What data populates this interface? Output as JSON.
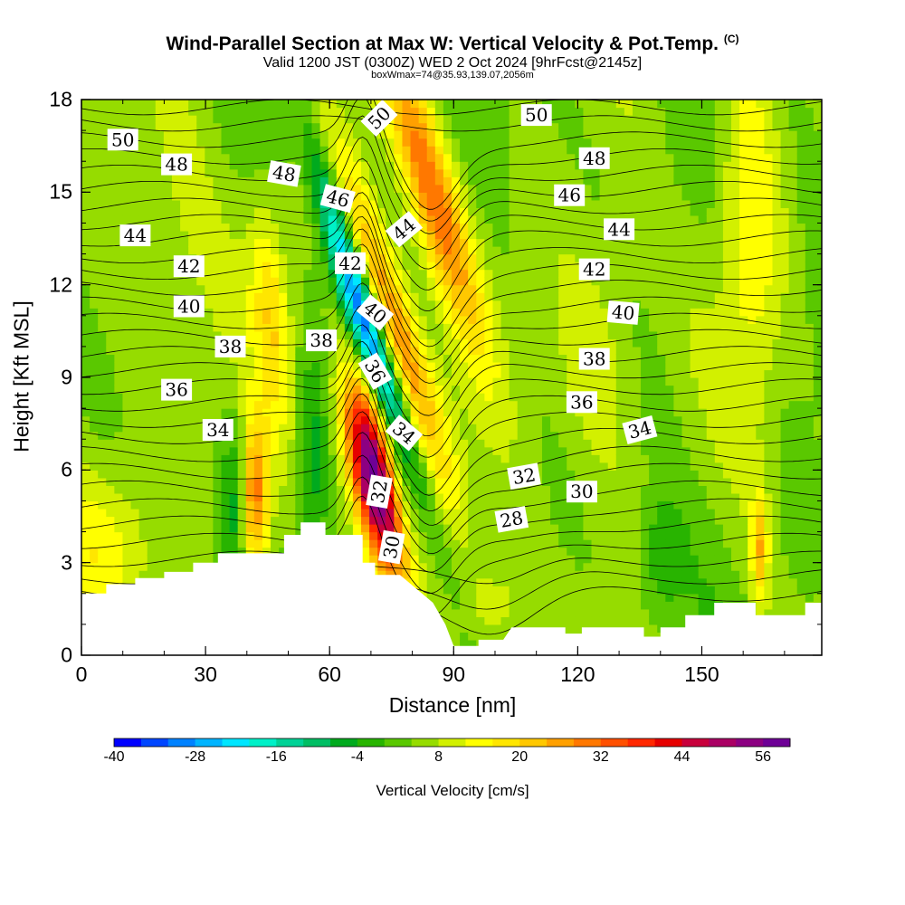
{
  "title": {
    "main": "Wind-Parallel Section at Max W: Vertical Velocity & Pot.Temp.",
    "main_mark": "(C)",
    "sub": "Valid 1200 JST (0300Z) WED 2 Oct 2024 [9hrFcst@2145z]",
    "sub2": "boxWmax=74@35.93,139.07,2056m"
  },
  "chart_data": {
    "type": "heatmap",
    "xlabel": "Distance [nm]",
    "ylabel": "Height [Kft MSL]",
    "xlim": [
      0,
      179
    ],
    "ylim": [
      0,
      18
    ],
    "xticks": [
      "0",
      "30",
      "60",
      "90",
      "120",
      "150"
    ],
    "yticks": [
      "0",
      "3",
      "6",
      "9",
      "12",
      "15",
      "18"
    ],
    "terrain": [
      [
        0,
        2.0
      ],
      [
        6,
        2.0
      ],
      [
        6,
        2.3
      ],
      [
        13,
        2.3
      ],
      [
        13,
        2.5
      ],
      [
        20,
        2.5
      ],
      [
        20,
        2.7
      ],
      [
        27,
        2.7
      ],
      [
        27,
        3.0
      ],
      [
        33,
        3.0
      ],
      [
        33,
        3.3
      ],
      [
        49,
        3.3
      ],
      [
        49,
        3.9
      ],
      [
        53,
        3.9
      ],
      [
        53,
        4.3
      ],
      [
        59,
        4.3
      ],
      [
        59,
        3.9
      ],
      [
        68,
        3.9
      ],
      [
        68,
        3.0
      ],
      [
        71,
        3.0
      ],
      [
        71,
        2.6
      ],
      [
        77,
        2.6
      ],
      [
        85,
        1.7
      ],
      [
        88,
        1.0
      ],
      [
        90,
        0.3
      ],
      [
        96,
        0.3
      ],
      [
        96,
        0.5
      ],
      [
        102,
        0.5
      ],
      [
        104,
        0.9
      ],
      [
        117,
        0.9
      ],
      [
        117,
        0.7
      ],
      [
        121,
        0.7
      ],
      [
        121,
        0.9
      ],
      [
        136,
        0.9
      ],
      [
        136,
        0.6
      ],
      [
        140,
        0.6
      ],
      [
        140,
        0.9
      ],
      [
        146,
        0.9
      ],
      [
        146,
        1.3
      ],
      [
        153,
        1.3
      ],
      [
        153,
        1.7
      ],
      [
        163,
        1.7
      ],
      [
        163,
        1.3
      ],
      [
        175,
        1.3
      ],
      [
        175,
        1.7
      ],
      [
        179,
        1.7
      ]
    ],
    "w_features": [
      {
        "x": 71,
        "y": 5.8,
        "w": 60,
        "sx": 4,
        "sy": 2.2,
        "rot": -0.25
      },
      {
        "x": 76,
        "y": 10.5,
        "w": 28,
        "sx": 4,
        "sy": 4.5,
        "rot": -0.38
      },
      {
        "x": 85,
        "y": 15,
        "w": 26,
        "sx": 4,
        "sy": 3.5,
        "rot": -0.35
      },
      {
        "x": 71,
        "y": 10,
        "w": -34,
        "sx": 2.6,
        "sy": 3.5,
        "rot": -0.38
      },
      {
        "x": 76,
        "y": 5.5,
        "w": -14,
        "sx": 2.5,
        "sy": 1.5,
        "rot": -0.3
      },
      {
        "x": 63,
        "y": 13,
        "w": -14,
        "sx": 2.5,
        "sy": 3.5,
        "rot": -0.3
      },
      {
        "x": 42,
        "y": 5,
        "w": 26,
        "sx": 2.4,
        "sy": 1.8,
        "rot": 0
      },
      {
        "x": 46,
        "y": 11,
        "w": 14,
        "sx": 3,
        "sy": 2.5,
        "rot": -0.1
      },
      {
        "x": 37,
        "y": 5,
        "w": -9,
        "sx": 2,
        "sy": 2,
        "rot": 0
      },
      {
        "x": 56,
        "y": 6,
        "w": -9,
        "sx": 2.5,
        "sy": 2.5,
        "rot": 0
      },
      {
        "x": 164,
        "y": 3.5,
        "w": 18,
        "sx": 1.5,
        "sy": 1.3,
        "rot": 0
      },
      {
        "x": 140,
        "y": 3,
        "w": -8,
        "sx": 4,
        "sy": 1.5,
        "rot": 0
      },
      {
        "x": 4,
        "y": 3.5,
        "w": 10,
        "sx": 8,
        "sy": 2,
        "rot": 0
      },
      {
        "x": 100,
        "y": 1.5,
        "w": 8,
        "sx": 5,
        "sy": 1,
        "rot": 0
      },
      {
        "x": 162,
        "y": 15,
        "w": 10,
        "sx": 5,
        "sy": 6,
        "rot": 0
      },
      {
        "x": 125,
        "y": 10,
        "w": 8,
        "sx": 8,
        "sy": 3,
        "rot": 0
      },
      {
        "x": 20,
        "y": 12,
        "w": 6,
        "sx": 10,
        "sy": 4,
        "rot": 0
      }
    ],
    "theta_levels": [
      28,
      30,
      32,
      34,
      36,
      38,
      40,
      42,
      44,
      46,
      48,
      50
    ],
    "theta_labels": [
      {
        "text": "50",
        "x": 10,
        "y": 16.7,
        "rot": 0
      },
      {
        "text": "48",
        "x": 23,
        "y": 15.9,
        "rot": 0
      },
      {
        "text": "44",
        "x": 13,
        "y": 13.6,
        "rot": 0
      },
      {
        "text": "42",
        "x": 26,
        "y": 12.6,
        "rot": 0
      },
      {
        "text": "40",
        "x": 26,
        "y": 11.3,
        "rot": 0
      },
      {
        "text": "38",
        "x": 36,
        "y": 10.0,
        "rot": 0
      },
      {
        "text": "36",
        "x": 23,
        "y": 8.6,
        "rot": 0
      },
      {
        "text": "34",
        "x": 33,
        "y": 7.3,
        "rot": 0
      },
      {
        "text": "48",
        "x": 49,
        "y": 15.6,
        "rot": 10
      },
      {
        "text": "46",
        "x": 62,
        "y": 14.8,
        "rot": 15
      },
      {
        "text": "42",
        "x": 65,
        "y": 12.7,
        "rot": 0
      },
      {
        "text": "38",
        "x": 58,
        "y": 10.2,
        "rot": 0
      },
      {
        "text": "50",
        "x": 72,
        "y": 17.4,
        "rot": -45
      },
      {
        "text": "44",
        "x": 78,
        "y": 13.8,
        "rot": -40
      },
      {
        "text": "40",
        "x": 71,
        "y": 11.1,
        "rot": 40
      },
      {
        "text": "36",
        "x": 71,
        "y": 9.2,
        "rot": 60
      },
      {
        "text": "34",
        "x": 78,
        "y": 7.2,
        "rot": 40
      },
      {
        "text": "32",
        "x": 72,
        "y": 5.3,
        "rot": -80
      },
      {
        "text": "30",
        "x": 75,
        "y": 3.5,
        "rot": -80
      },
      {
        "text": "50",
        "x": 110,
        "y": 17.5,
        "rot": 0
      },
      {
        "text": "48",
        "x": 124,
        "y": 16.1,
        "rot": 0
      },
      {
        "text": "46",
        "x": 118,
        "y": 14.9,
        "rot": 0
      },
      {
        "text": "44",
        "x": 130,
        "y": 13.8,
        "rot": 0
      },
      {
        "text": "42",
        "x": 124,
        "y": 12.5,
        "rot": 0
      },
      {
        "text": "40",
        "x": 131,
        "y": 11.1,
        "rot": 5
      },
      {
        "text": "38",
        "x": 124,
        "y": 9.6,
        "rot": 0
      },
      {
        "text": "36",
        "x": 121,
        "y": 8.2,
        "rot": 0
      },
      {
        "text": "34",
        "x": 135,
        "y": 7.3,
        "rot": -15
      },
      {
        "text": "32",
        "x": 107,
        "y": 5.8,
        "rot": -10
      },
      {
        "text": "30",
        "x": 121,
        "y": 5.3,
        "rot": 0
      },
      {
        "text": "28",
        "x": 104,
        "y": 4.4,
        "rot": -10
      }
    ],
    "colorbar": {
      "label": "Vertical Velocity [cm/s]",
      "ticks": [
        "-40",
        "-28",
        "-16",
        "-4",
        "8",
        "20",
        "32",
        "44",
        "56"
      ],
      "colors": [
        "#0000ff",
        "#0046ff",
        "#0082ff",
        "#00b4ff",
        "#00e6ff",
        "#00f0c8",
        "#00d296",
        "#00be64",
        "#00aa1e",
        "#28b400",
        "#5ac800",
        "#96dc00",
        "#d2f000",
        "#ffff00",
        "#ffe600",
        "#ffc800",
        "#ffa000",
        "#ff7800",
        "#ff5000",
        "#ff2800",
        "#e60000",
        "#c8003c",
        "#aa0064",
        "#8c0082",
        "#6e0096"
      ],
      "min": -40,
      "step": 4
    }
  }
}
